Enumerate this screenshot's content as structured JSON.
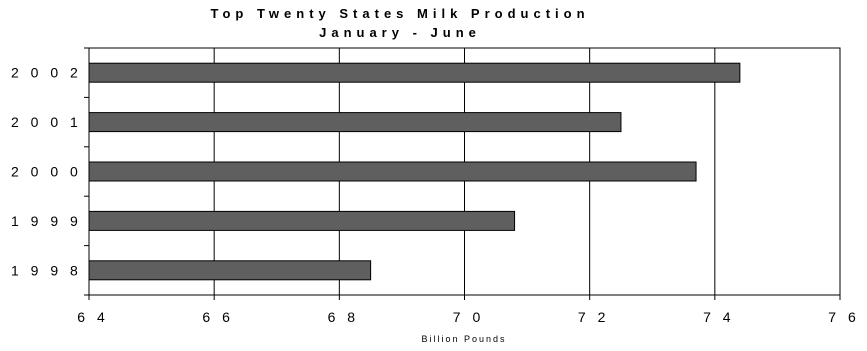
{
  "chart_data": {
    "type": "bar",
    "orientation": "horizontal",
    "title": "Top Twenty States Milk Production",
    "subtitle": "January - June",
    "xlabel": "Billion Pounds",
    "ylabel": "",
    "categories": [
      "2002",
      "2001",
      "2000",
      "1999",
      "1998"
    ],
    "values": [
      74.4,
      72.5,
      73.7,
      70.8,
      68.5
    ],
    "xlim": [
      64,
      76
    ],
    "xticks": [
      "6 4",
      "6 6",
      "6 8",
      "7 0",
      "7 2",
      "7 4",
      "7 6"
    ],
    "ytick_labels": [
      "2 0 0 2",
      "2 0 0 1",
      "2 0 0 0",
      "1 9 9 9",
      "1 9 9 8"
    ],
    "grid": "vertical",
    "bar_color": "#5f5f5f",
    "legend": "none"
  }
}
